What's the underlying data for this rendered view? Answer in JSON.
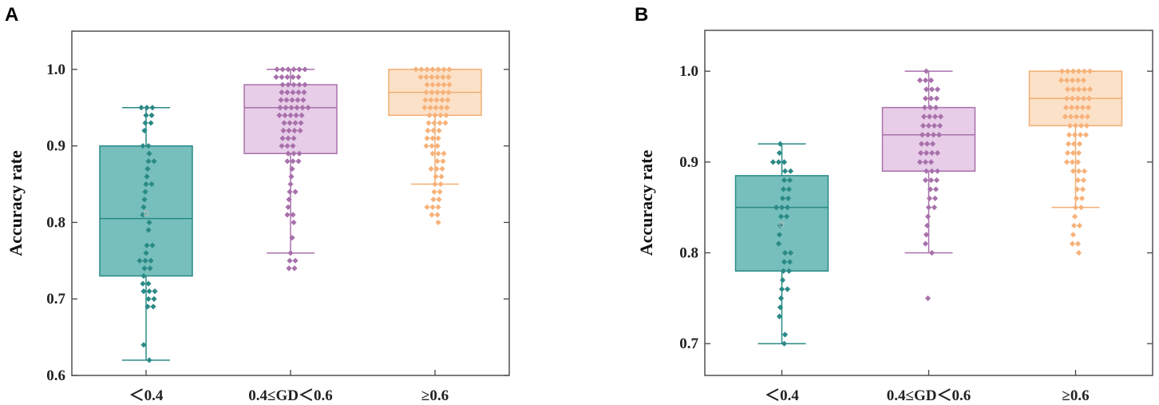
{
  "chart_data": [
    {
      "type": "box",
      "panel_label": "A",
      "ylabel": "Accuracy rate",
      "xlabel": "",
      "ylim": [
        0.6,
        1.05
      ],
      "yticks": [
        "0.6",
        "0.7",
        "0.8",
        "0.9",
        "1.0"
      ],
      "ytick_values": [
        0.6,
        0.7,
        0.8,
        0.9,
        1.0
      ],
      "categories": [
        "＜0.4",
        "0.4≤GD＜0.6",
        "≥0.6"
      ],
      "colors": [
        {
          "fill": "#76bfbc",
          "stroke": "#2a8a86",
          "point": "#2a8a86"
        },
        {
          "fill": "#e7cde8",
          "stroke": "#a871ab",
          "point": "#a871ab"
        },
        {
          "fill": "#fbe1c8",
          "stroke": "#f3ae72",
          "point": "#f6b27a"
        }
      ],
      "series": [
        {
          "name": "＜0.4",
          "whisker_low": 0.62,
          "q1": 0.73,
          "median": 0.805,
          "q3": 0.9,
          "whisker_high": 0.95,
          "mean": 0.812,
          "points": [
            0.62,
            0.64,
            0.69,
            0.69,
            0.7,
            0.7,
            0.71,
            0.71,
            0.71,
            0.72,
            0.72,
            0.73,
            0.74,
            0.74,
            0.75,
            0.75,
            0.75,
            0.76,
            0.77,
            0.77,
            0.79,
            0.8,
            0.81,
            0.82,
            0.83,
            0.84,
            0.85,
            0.85,
            0.86,
            0.87,
            0.88,
            0.88,
            0.89,
            0.9,
            0.9,
            0.92,
            0.93,
            0.93,
            0.94,
            0.94,
            0.95,
            0.95,
            0.95
          ]
        },
        {
          "name": "0.4≤GD＜0.6",
          "whisker_low": 0.76,
          "q1": 0.89,
          "median": 0.95,
          "q3": 0.98,
          "whisker_high": 1.0,
          "points": [
            0.74,
            0.74,
            0.75,
            0.75,
            0.76,
            0.78,
            0.8,
            0.81,
            0.81,
            0.82,
            0.83,
            0.84,
            0.84,
            0.85,
            0.86,
            0.87,
            0.88,
            0.88,
            0.88,
            0.89,
            0.89,
            0.89,
            0.9,
            0.9,
            0.9,
            0.91,
            0.91,
            0.91,
            0.92,
            0.92,
            0.92,
            0.92,
            0.93,
            0.93,
            0.93,
            0.93,
            0.94,
            0.94,
            0.94,
            0.94,
            0.94,
            0.95,
            0.95,
            0.95,
            0.95,
            0.95,
            0.95,
            0.96,
            0.96,
            0.96,
            0.96,
            0.96,
            0.97,
            0.97,
            0.97,
            0.97,
            0.97,
            0.98,
            0.98,
            0.98,
            0.98,
            0.98,
            0.99,
            0.99,
            0.99,
            0.99,
            0.99,
            1.0,
            1.0,
            1.0,
            1.0,
            1.0,
            1.0
          ]
        },
        {
          "name": "≥0.6",
          "whisker_low": 0.85,
          "q1": 0.94,
          "median": 0.97,
          "q3": 1.0,
          "whisker_high": 1.0,
          "points": [
            0.8,
            0.81,
            0.81,
            0.82,
            0.82,
            0.82,
            0.83,
            0.83,
            0.84,
            0.84,
            0.85,
            0.85,
            0.86,
            0.86,
            0.87,
            0.87,
            0.87,
            0.88,
            0.88,
            0.89,
            0.89,
            0.89,
            0.9,
            0.9,
            0.9,
            0.91,
            0.91,
            0.91,
            0.92,
            0.92,
            0.92,
            0.93,
            0.93,
            0.93,
            0.93,
            0.94,
            0.94,
            0.94,
            0.94,
            0.95,
            0.95,
            0.95,
            0.95,
            0.95,
            0.96,
            0.96,
            0.96,
            0.96,
            0.96,
            0.97,
            0.97,
            0.97,
            0.97,
            0.97,
            0.98,
            0.98,
            0.98,
            0.98,
            0.98,
            0.99,
            0.99,
            0.99,
            0.99,
            0.99,
            0.99,
            1.0,
            1.0,
            1.0,
            1.0,
            1.0,
            1.0,
            1.0
          ]
        }
      ]
    },
    {
      "type": "box",
      "panel_label": "B",
      "ylabel": "Accuracy rate",
      "xlabel": "",
      "ylim": [
        0.665,
        1.045
      ],
      "yticks": [
        "0.7",
        "0.8",
        "0.9",
        "1.0"
      ],
      "ytick_values": [
        0.7,
        0.8,
        0.9,
        1.0
      ],
      "categories": [
        "＜0.4",
        "0.4≤GD＜0.6",
        "≥0.6"
      ],
      "colors": [
        {
          "fill": "#76bfbc",
          "stroke": "#2a8a86",
          "point": "#2a8a86"
        },
        {
          "fill": "#e7cde8",
          "stroke": "#a871ab",
          "point": "#a871ab"
        },
        {
          "fill": "#fbe1c8",
          "stroke": "#f3ae72",
          "point": "#f6b27a"
        }
      ],
      "series": [
        {
          "name": "＜0.4",
          "whisker_low": 0.7,
          "q1": 0.78,
          "median": 0.85,
          "q3": 0.885,
          "whisker_high": 0.92,
          "mean": 0.831,
          "points": [
            0.7,
            0.71,
            0.73,
            0.74,
            0.75,
            0.76,
            0.76,
            0.77,
            0.78,
            0.78,
            0.79,
            0.79,
            0.8,
            0.8,
            0.81,
            0.82,
            0.83,
            0.84,
            0.84,
            0.85,
            0.85,
            0.85,
            0.86,
            0.86,
            0.87,
            0.87,
            0.88,
            0.88,
            0.89,
            0.89,
            0.9,
            0.9,
            0.9,
            0.91,
            0.92
          ]
        },
        {
          "name": "0.4≤GD＜0.6",
          "whisker_low": 0.8,
          "q1": 0.89,
          "median": 0.93,
          "q3": 0.96,
          "whisker_high": 1.0,
          "points": [
            0.75,
            0.8,
            0.81,
            0.82,
            0.83,
            0.84,
            0.85,
            0.85,
            0.86,
            0.86,
            0.87,
            0.87,
            0.88,
            0.88,
            0.88,
            0.89,
            0.89,
            0.89,
            0.9,
            0.9,
            0.9,
            0.91,
            0.91,
            0.91,
            0.91,
            0.92,
            0.92,
            0.92,
            0.93,
            0.93,
            0.93,
            0.93,
            0.94,
            0.94,
            0.94,
            0.94,
            0.95,
            0.95,
            0.95,
            0.95,
            0.96,
            0.96,
            0.96,
            0.97,
            0.97,
            0.97,
            0.98,
            0.98,
            0.98,
            0.99,
            0.99,
            0.99,
            1.0
          ]
        },
        {
          "name": "≥0.6",
          "whisker_low": 0.85,
          "q1": 0.94,
          "median": 0.97,
          "q3": 1.0,
          "whisker_high": 1.0,
          "points": [
            0.8,
            0.81,
            0.81,
            0.82,
            0.83,
            0.83,
            0.84,
            0.85,
            0.85,
            0.86,
            0.86,
            0.87,
            0.87,
            0.88,
            0.88,
            0.89,
            0.89,
            0.89,
            0.9,
            0.9,
            0.9,
            0.91,
            0.91,
            0.91,
            0.92,
            0.92,
            0.92,
            0.93,
            0.93,
            0.93,
            0.93,
            0.94,
            0.94,
            0.94,
            0.94,
            0.95,
            0.95,
            0.95,
            0.95,
            0.95,
            0.96,
            0.96,
            0.96,
            0.96,
            0.96,
            0.97,
            0.97,
            0.97,
            0.97,
            0.97,
            0.98,
            0.98,
            0.98,
            0.98,
            0.98,
            0.99,
            0.99,
            0.99,
            0.99,
            0.99,
            1.0,
            1.0,
            1.0,
            1.0,
            1.0,
            1.0
          ]
        }
      ]
    }
  ]
}
